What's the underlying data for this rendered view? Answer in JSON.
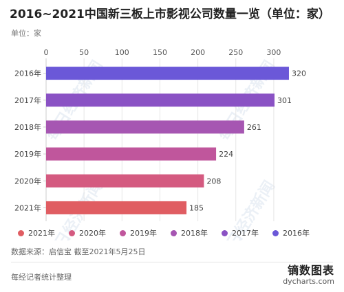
{
  "title": "2016~2021中国新三板上市影视公司数量一览（单位：家）",
  "unit_label": "单位：家",
  "source": "数据来源：启信宝 截至2021年5月25日",
  "compiled_by": "每经记者统计整理",
  "brand": {
    "name": "镝数图表",
    "url": "dycharts.com"
  },
  "watermark": "每日经济新闻",
  "chart_data": {
    "type": "bar",
    "orientation": "horizontal",
    "categories": [
      "2016年",
      "2017年",
      "2018年",
      "2019年",
      "2020年",
      "2021年"
    ],
    "values": [
      320,
      301,
      261,
      224,
      208,
      185
    ],
    "colors": [
      "#6b58d8",
      "#8a52c4",
      "#a656b2",
      "#c0569c",
      "#d45a80",
      "#e05d62"
    ],
    "xlim": [
      0,
      330
    ],
    "x_ticks": [
      0,
      50,
      100,
      150,
      200,
      250,
      300
    ],
    "grid": true,
    "xaxis_position": "top",
    "legend": {
      "position": "bottom",
      "items": [
        {
          "label": "2021年",
          "color": "#e05d62"
        },
        {
          "label": "2020年",
          "color": "#d45a80"
        },
        {
          "label": "2019年",
          "color": "#c0569c"
        },
        {
          "label": "2018年",
          "color": "#a656b2"
        },
        {
          "label": "2017年",
          "color": "#8a52c4"
        },
        {
          "label": "2016年",
          "color": "#6b58d8"
        }
      ]
    }
  }
}
